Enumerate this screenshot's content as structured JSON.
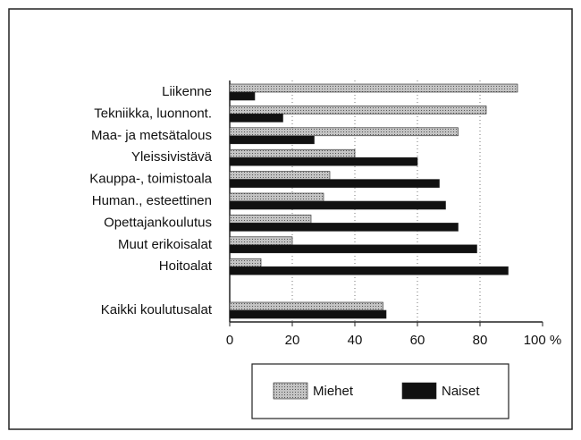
{
  "chart_data": {
    "type": "bar",
    "orientation": "horizontal",
    "categories": [
      "Liikenne",
      "Tekniikka, luonnont.",
      "Maa- ja metsätalous",
      "Yleissivistävä",
      "Kauppa-, toimistoala",
      "Human., esteettinen",
      "Opettajankoulutus",
      "Muut erikoisalat",
      "Hoitoalat",
      null,
      "Kaikki koulutusalat"
    ],
    "series": [
      {
        "name": "Miehet",
        "color": "#c4c4c4",
        "values": [
          92,
          82,
          73,
          40,
          32,
          30,
          26,
          20,
          10,
          null,
          49
        ]
      },
      {
        "name": "Naiset",
        "color": "#111111",
        "values": [
          8,
          17,
          27,
          60,
          67,
          69,
          73,
          79,
          89,
          null,
          50
        ]
      }
    ],
    "xlim": [
      0,
      100
    ],
    "xticks": [
      0,
      20,
      40,
      60,
      80,
      {
        "value": 100,
        "label": "100 %"
      }
    ],
    "grid": true,
    "legend": "bottom"
  }
}
